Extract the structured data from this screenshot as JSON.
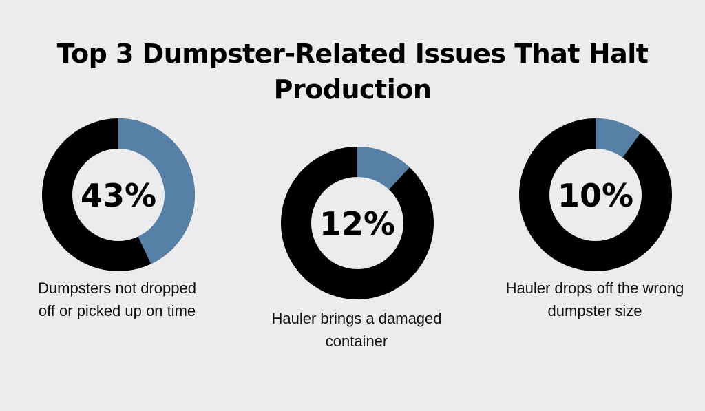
{
  "title": "Top 3 Dumpster-Related Issues That Halt Production",
  "colors": {
    "background": "#ecebee",
    "highlight": "#5680a6",
    "ring": "#000000",
    "center": "#ecebee"
  },
  "chart_data": {
    "type": "pie",
    "title": "Top 3 Dumpster-Related Issues That Halt Production",
    "items": [
      {
        "value": 43,
        "label": "43%",
        "caption": "Dumpsters not dropped off or picked up on time"
      },
      {
        "value": 12,
        "label": "12%",
        "caption": "Hauler brings a damaged container"
      },
      {
        "value": 10,
        "label": "10%",
        "caption": "Hauler drops off the wrong dumpster size"
      }
    ]
  }
}
